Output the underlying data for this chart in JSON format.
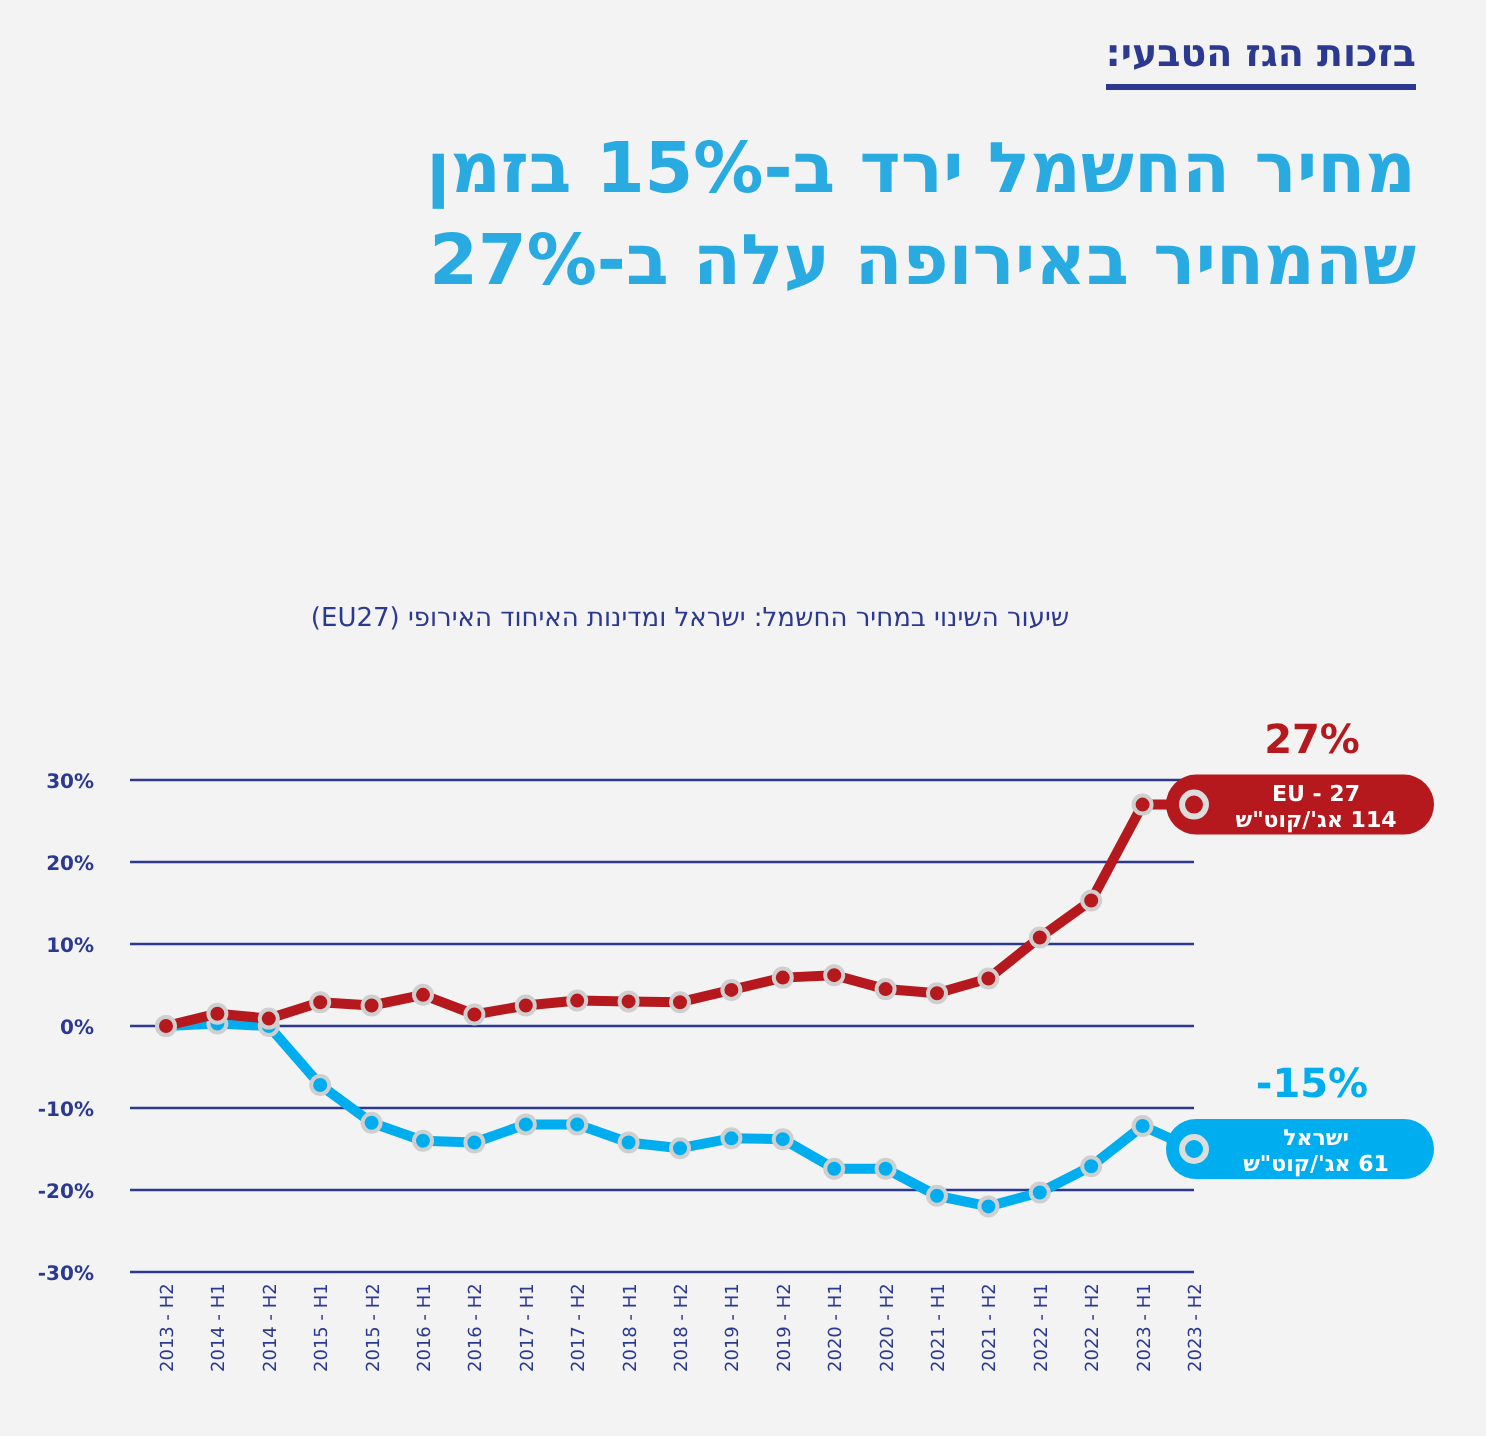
{
  "chart_data": {
    "type": "line",
    "title": "מחיר החשמל ירד ב-15% בזמן שהמחיר באירופה עלה ב-27%",
    "subtitle": "שיעור השינוי במחיר החשמל: ישראל ומדינות האיחוד האירופי (EU27)",
    "annotations": [
      "בזכות הגז הטבעי:",
      {
        "text": "27%",
        "x": "2023 - H2",
        "y": 27
      },
      {
        "text": "114 אג'/קוט\"ש",
        "x": "2023 - H2",
        "y": 27
      },
      {
        "text": "-15%",
        "x": "2023 - H2",
        "y": -15
      },
      {
        "text": "61 אג'/קוט\"ש",
        "x": "2023 - H2",
        "y": -15
      }
    ],
    "categories": [
      "2013 - H2",
      "2014 - H1",
      "2014 - H2",
      "2015 - H1",
      "2015 - H2",
      "2016 - H1",
      "2016 - H2",
      "2017 - H1",
      "2017 - H2",
      "2018 - H1",
      "2018 - H2",
      "2019 - H1",
      "2019 - H2",
      "2020 - H1",
      "2020 - H2",
      "2021 - H1",
      "2021 - H2",
      "2022 - H1",
      "2022 - H2",
      "2023 - H1",
      "2023 - H2"
    ],
    "series": [
      {
        "name": "EU - 27",
        "color": "#b5191e",
        "values": [
          0,
          1.5,
          0.9,
          2.9,
          2.5,
          3.8,
          1.4,
          2.5,
          3.1,
          3.0,
          2.9,
          4.4,
          5.9,
          6.2,
          4.5,
          4.0,
          5.8,
          10.8,
          15.3,
          27,
          27
        ]
      },
      {
        "name": "ישראל",
        "color": "#00aeef",
        "values": [
          0,
          0.3,
          0,
          -7.2,
          -11.8,
          -14.0,
          -14.2,
          -12.0,
          -12.0,
          -14.2,
          -14.9,
          -13.7,
          -13.8,
          -17.4,
          -17.4,
          -20.7,
          -22.0,
          -20.3,
          -17.1,
          -12.2,
          -15
        ]
      }
    ],
    "ylim": [
      -30,
      30
    ],
    "yticks": [
      {
        "value": -30,
        "label": "-30%"
      },
      {
        "value": -20,
        "label": "-20%"
      },
      {
        "value": -10,
        "label": "-10%"
      },
      {
        "value": 0,
        "label": "0%"
      },
      {
        "value": 10,
        "label": "10%"
      },
      {
        "value": 20,
        "label": "20%"
      },
      {
        "value": 30,
        "label": "30%"
      }
    ],
    "grid": "y",
    "marker": "circle",
    "line_style": "solid"
  }
}
